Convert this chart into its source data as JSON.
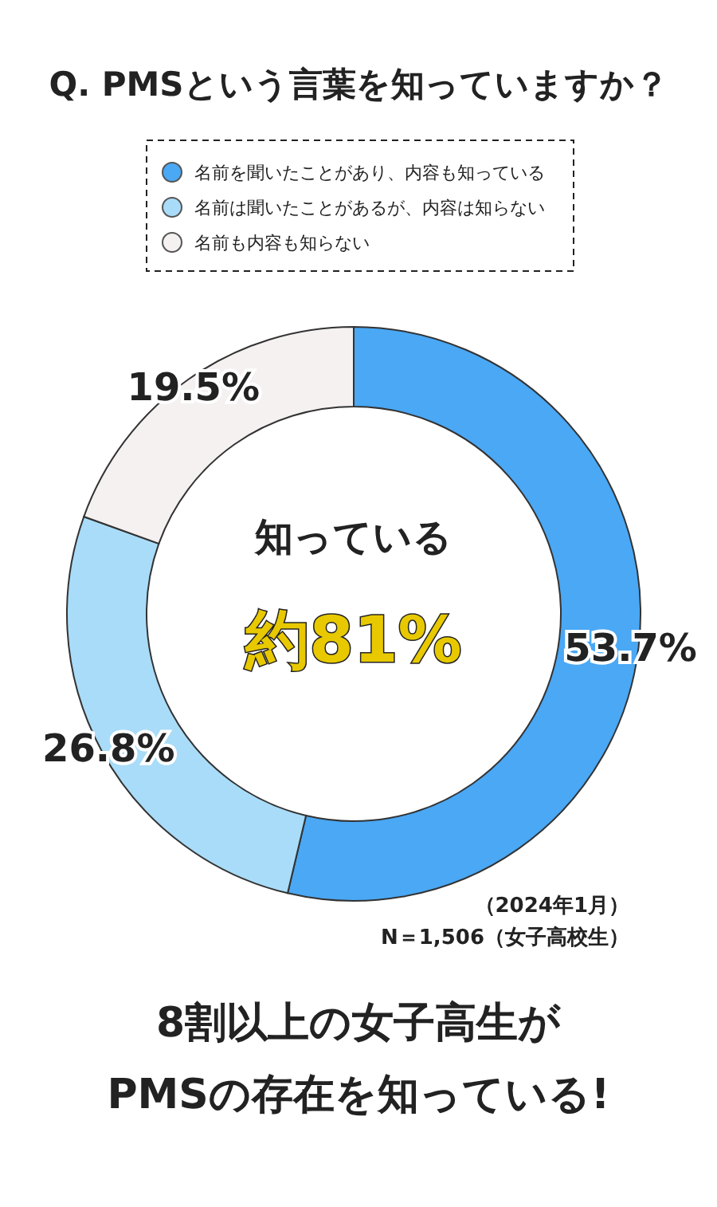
{
  "chart_data": {
    "type": "donut",
    "title": "Q. PMSという言葉を知っていますか？",
    "categories": [
      "名前を聞いたことがあり、内容も知っている",
      "名前は聞いたことがあるが、内容は知らない",
      "名前も内容も知らない"
    ],
    "values": [
      53.7,
      26.8,
      19.5
    ],
    "colors": [
      "#4aa8f5",
      "#a9dcf8",
      "#f5f1f1"
    ],
    "value_labels": [
      "53.7%",
      "26.8%",
      "19.5%"
    ],
    "legend": "top",
    "annotations": [
      "知っている",
      "約81%",
      "（2024年1月）",
      "N＝1,506（女子高校生）",
      "8割以上の女子高生が",
      "PMSの存在を知っている!"
    ]
  }
}
